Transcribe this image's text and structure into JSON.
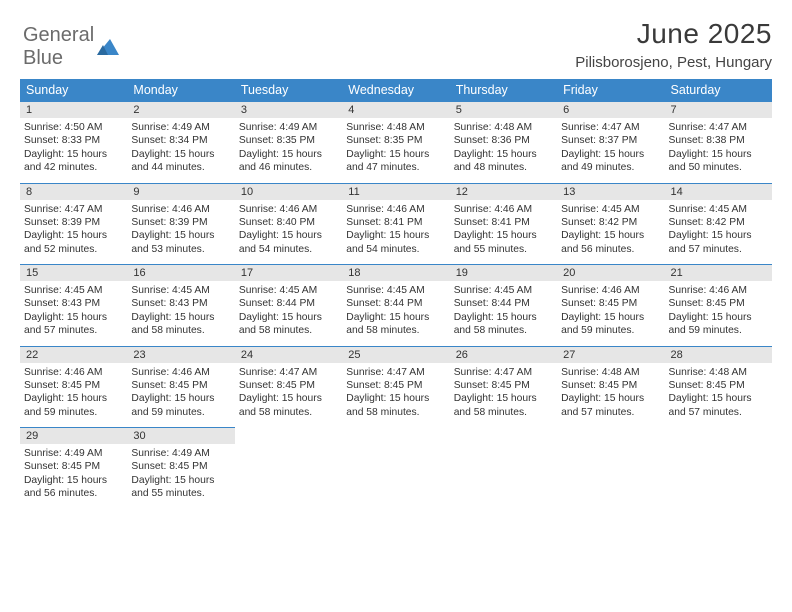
{
  "brand": {
    "part1": "General",
    "part2": "Blue"
  },
  "title": "June 2025",
  "location": "Pilisborosjeno, Pest, Hungary",
  "colors": {
    "header_bg": "#3a86c8",
    "header_fg": "#ffffff",
    "daynum_bg": "#e6e6e6",
    "border": "#3a86c8",
    "page_bg": "#ffffff",
    "text": "#333333"
  },
  "weekdays": [
    "Sunday",
    "Monday",
    "Tuesday",
    "Wednesday",
    "Thursday",
    "Friday",
    "Saturday"
  ],
  "weeks": [
    [
      {
        "n": "1",
        "sunrise": "4:50 AM",
        "sunset": "8:33 PM",
        "daylight": "15 hours and 42 minutes."
      },
      {
        "n": "2",
        "sunrise": "4:49 AM",
        "sunset": "8:34 PM",
        "daylight": "15 hours and 44 minutes."
      },
      {
        "n": "3",
        "sunrise": "4:49 AM",
        "sunset": "8:35 PM",
        "daylight": "15 hours and 46 minutes."
      },
      {
        "n": "4",
        "sunrise": "4:48 AM",
        "sunset": "8:35 PM",
        "daylight": "15 hours and 47 minutes."
      },
      {
        "n": "5",
        "sunrise": "4:48 AM",
        "sunset": "8:36 PM",
        "daylight": "15 hours and 48 minutes."
      },
      {
        "n": "6",
        "sunrise": "4:47 AM",
        "sunset": "8:37 PM",
        "daylight": "15 hours and 49 minutes."
      },
      {
        "n": "7",
        "sunrise": "4:47 AM",
        "sunset": "8:38 PM",
        "daylight": "15 hours and 50 minutes."
      }
    ],
    [
      {
        "n": "8",
        "sunrise": "4:47 AM",
        "sunset": "8:39 PM",
        "daylight": "15 hours and 52 minutes."
      },
      {
        "n": "9",
        "sunrise": "4:46 AM",
        "sunset": "8:39 PM",
        "daylight": "15 hours and 53 minutes."
      },
      {
        "n": "10",
        "sunrise": "4:46 AM",
        "sunset": "8:40 PM",
        "daylight": "15 hours and 54 minutes."
      },
      {
        "n": "11",
        "sunrise": "4:46 AM",
        "sunset": "8:41 PM",
        "daylight": "15 hours and 54 minutes."
      },
      {
        "n": "12",
        "sunrise": "4:46 AM",
        "sunset": "8:41 PM",
        "daylight": "15 hours and 55 minutes."
      },
      {
        "n": "13",
        "sunrise": "4:45 AM",
        "sunset": "8:42 PM",
        "daylight": "15 hours and 56 minutes."
      },
      {
        "n": "14",
        "sunrise": "4:45 AM",
        "sunset": "8:42 PM",
        "daylight": "15 hours and 57 minutes."
      }
    ],
    [
      {
        "n": "15",
        "sunrise": "4:45 AM",
        "sunset": "8:43 PM",
        "daylight": "15 hours and 57 minutes."
      },
      {
        "n": "16",
        "sunrise": "4:45 AM",
        "sunset": "8:43 PM",
        "daylight": "15 hours and 58 minutes."
      },
      {
        "n": "17",
        "sunrise": "4:45 AM",
        "sunset": "8:44 PM",
        "daylight": "15 hours and 58 minutes."
      },
      {
        "n": "18",
        "sunrise": "4:45 AM",
        "sunset": "8:44 PM",
        "daylight": "15 hours and 58 minutes."
      },
      {
        "n": "19",
        "sunrise": "4:45 AM",
        "sunset": "8:44 PM",
        "daylight": "15 hours and 58 minutes."
      },
      {
        "n": "20",
        "sunrise": "4:46 AM",
        "sunset": "8:45 PM",
        "daylight": "15 hours and 59 minutes."
      },
      {
        "n": "21",
        "sunrise": "4:46 AM",
        "sunset": "8:45 PM",
        "daylight": "15 hours and 59 minutes."
      }
    ],
    [
      {
        "n": "22",
        "sunrise": "4:46 AM",
        "sunset": "8:45 PM",
        "daylight": "15 hours and 59 minutes."
      },
      {
        "n": "23",
        "sunrise": "4:46 AM",
        "sunset": "8:45 PM",
        "daylight": "15 hours and 59 minutes."
      },
      {
        "n": "24",
        "sunrise": "4:47 AM",
        "sunset": "8:45 PM",
        "daylight": "15 hours and 58 minutes."
      },
      {
        "n": "25",
        "sunrise": "4:47 AM",
        "sunset": "8:45 PM",
        "daylight": "15 hours and 58 minutes."
      },
      {
        "n": "26",
        "sunrise": "4:47 AM",
        "sunset": "8:45 PM",
        "daylight": "15 hours and 58 minutes."
      },
      {
        "n": "27",
        "sunrise": "4:48 AM",
        "sunset": "8:45 PM",
        "daylight": "15 hours and 57 minutes."
      },
      {
        "n": "28",
        "sunrise": "4:48 AM",
        "sunset": "8:45 PM",
        "daylight": "15 hours and 57 minutes."
      }
    ],
    [
      {
        "n": "29",
        "sunrise": "4:49 AM",
        "sunset": "8:45 PM",
        "daylight": "15 hours and 56 minutes."
      },
      {
        "n": "30",
        "sunrise": "4:49 AM",
        "sunset": "8:45 PM",
        "daylight": "15 hours and 55 minutes."
      },
      null,
      null,
      null,
      null,
      null
    ]
  ],
  "labels": {
    "sunrise": "Sunrise:",
    "sunset": "Sunset:",
    "daylight": "Daylight:"
  }
}
